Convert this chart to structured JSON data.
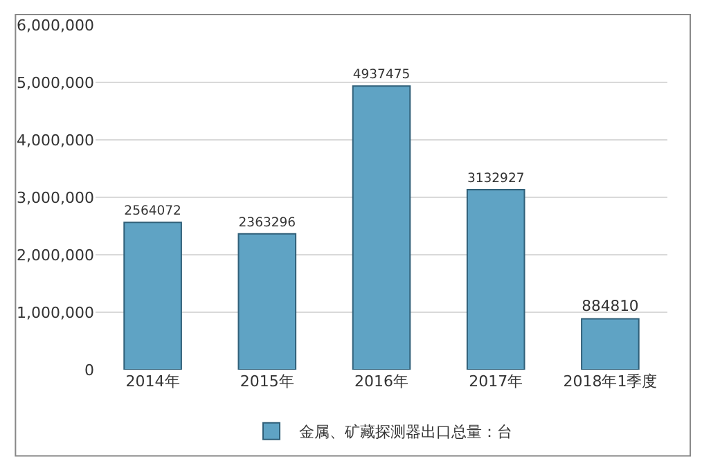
{
  "chart_data": {
    "type": "bar",
    "categories": [
      "2014年",
      "2015年",
      "2016年",
      "2017年",
      "2018年1季度"
    ],
    "series": [
      {
        "name": "金属、矿藏探测器出口总量：台",
        "color": "#5fa3c4",
        "values": [
          2564072,
          2363296,
          4937475,
          3132927,
          884810
        ]
      }
    ],
    "ylim": [
      0,
      6000000
    ],
    "yticks": [
      0,
      {
        "value": 1000000,
        "label": "1,000,000"
      },
      {
        "value": 2000000,
        "label": "2,000,000"
      },
      {
        "value": 3000000,
        "label": "3,000,000"
      },
      {
        "value": 4000000,
        "label": "4,000,000"
      },
      {
        "value": 5000000,
        "label": "5,000,000"
      },
      {
        "value": 6000000,
        "label": "6,000,000"
      }
    ],
    "grid": "y",
    "legend": "bottom",
    "data_labels": true
  }
}
